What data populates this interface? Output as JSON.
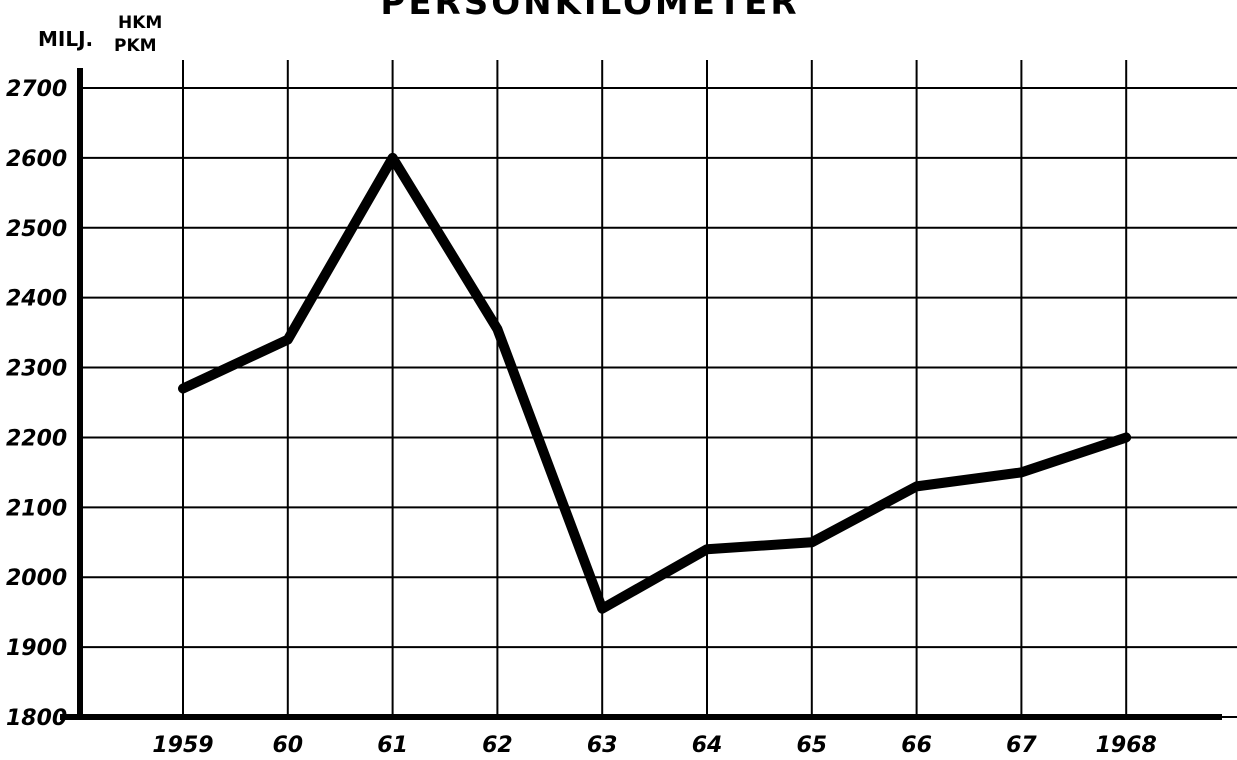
{
  "chart_data": {
    "type": "line",
    "title": "PERSONKILOMETER",
    "ylabel": "MILJ.",
    "ylabel_units": [
      "HKM",
      "PKM"
    ],
    "categories": [
      "1959",
      "60",
      "61",
      "62",
      "63",
      "64",
      "65",
      "66",
      "67",
      "1968"
    ],
    "series": [
      {
        "name": "PKM",
        "color": "#000000",
        "values": [
          2270,
          2340,
          2600,
          2355,
          1955,
          2040,
          2050,
          2130,
          2150,
          2200
        ]
      }
    ],
    "ylim": [
      1800,
      2700
    ],
    "yticks": [
      1800,
      1900,
      2000,
      2100,
      2200,
      2300,
      2400,
      2500,
      2600,
      2700
    ],
    "grid": true
  }
}
